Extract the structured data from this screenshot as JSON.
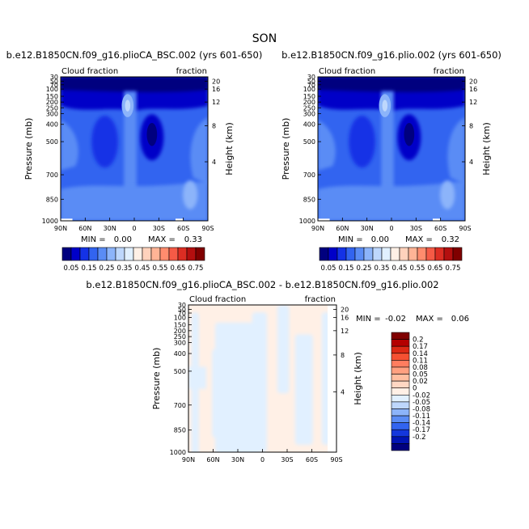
{
  "figure": {
    "title": "SON"
  },
  "colors": {
    "blues": [
      "#00007f",
      "#0000c8",
      "#1432e6",
      "#3264f0",
      "#5a8cf5",
      "#8cb4fa",
      "#bed7fc",
      "#e1f0ff"
    ],
    "reds": [
      "#fff0e6",
      "#ffd2bc",
      "#ffb496",
      "#ff8c6e",
      "#f55a46",
      "#dc2d23",
      "#b40f0f",
      "#800000"
    ],
    "diff_neg": [
      "#00007f",
      "#0014b4",
      "#1437dc",
      "#3264f0",
      "#5a8cf5",
      "#8cb4fa",
      "#bed7fc",
      "#e1f0ff"
    ],
    "diff_pos": [
      "#fff0e6",
      "#ffd7c3",
      "#ffbea0",
      "#ffa080",
      "#ff7d5f",
      "#f55032",
      "#dc2814",
      "#b40000",
      "#800000"
    ],
    "white": "#ffffff"
  },
  "chart_data": [
    {
      "type": "heatmap",
      "name": "panel1",
      "title": "b.e12.B1850CN.f09_g16.plioCA_BSC.002 (yrs 601-650)",
      "left_label": "Cloud fraction",
      "right_label": "fraction",
      "xlabel": "",
      "ylabel": "Pressure (mb)",
      "ylabel_right": "Height (km)",
      "x_ticks": [
        "90N",
        "60N",
        "30N",
        "0",
        "30S",
        "60S",
        "90S"
      ],
      "y_ticks": [
        "30",
        "50",
        "70",
        "100",
        "150",
        "200",
        "250",
        "300",
        "400",
        "500",
        "700",
        "850",
        "1000"
      ],
      "y_ticks_right": [
        "20",
        "16",
        "12",
        "8",
        "4"
      ],
      "min_label": "MIN =",
      "min_value": "0.00",
      "max_label": "MAX =",
      "max_value": "0.33",
      "colorbar": [
        "0.05",
        "0.15",
        "0.25",
        "0.35",
        "0.45",
        "0.55",
        "0.65",
        "0.75"
      ]
    },
    {
      "type": "heatmap",
      "name": "panel2",
      "title": "b.e12.B1850CN.f09_g16.plio.002 (yrs 601-650)",
      "left_label": "Cloud fraction",
      "right_label": "fraction",
      "xlabel": "",
      "ylabel": "Pressure (mb)",
      "ylabel_right": "Height (km)",
      "x_ticks": [
        "90N",
        "60N",
        "30N",
        "0",
        "30S",
        "60S",
        "90S"
      ],
      "y_ticks": [
        "30",
        "50",
        "70",
        "100",
        "150",
        "200",
        "250",
        "300",
        "400",
        "500",
        "700",
        "850",
        "1000"
      ],
      "y_ticks_right": [
        "20",
        "16",
        "12",
        "8",
        "4"
      ],
      "min_label": "MIN =",
      "min_value": "0.00",
      "max_label": "MAX =",
      "max_value": "0.32",
      "colorbar": [
        "0.05",
        "0.15",
        "0.25",
        "0.35",
        "0.45",
        "0.55",
        "0.65",
        "0.75"
      ]
    },
    {
      "type": "heatmap",
      "name": "panel3",
      "title": "b.e12.B1850CN.f09_g16.plioCA_BSC.002 - b.e12.B1850CN.f09_g16.plio.002",
      "left_label": "Cloud fraction",
      "right_label": "fraction",
      "xlabel": "",
      "ylabel": "Pressure (mb)",
      "ylabel_right": "Height (km)",
      "x_ticks": [
        "90N",
        "60N",
        "30N",
        "0",
        "30S",
        "60S",
        "90S"
      ],
      "y_ticks": [
        "30",
        "50",
        "70",
        "100",
        "150",
        "200",
        "250",
        "300",
        "400",
        "500",
        "700",
        "850",
        "1000"
      ],
      "y_ticks_right": [
        "20",
        "16",
        "12",
        "8",
        "4"
      ],
      "min_label": "MIN =",
      "min_value": "-0.02",
      "max_label": "MAX =",
      "max_value": "0.06",
      "colorbar": [
        "0.2",
        "0.17",
        "0.14",
        "0.11",
        "0.08",
        "0.05",
        "0.02",
        "0",
        "-0.02",
        "-0.05",
        "-0.08",
        "-0.11",
        "-0.14",
        "-0.17",
        "-0.2"
      ]
    }
  ]
}
